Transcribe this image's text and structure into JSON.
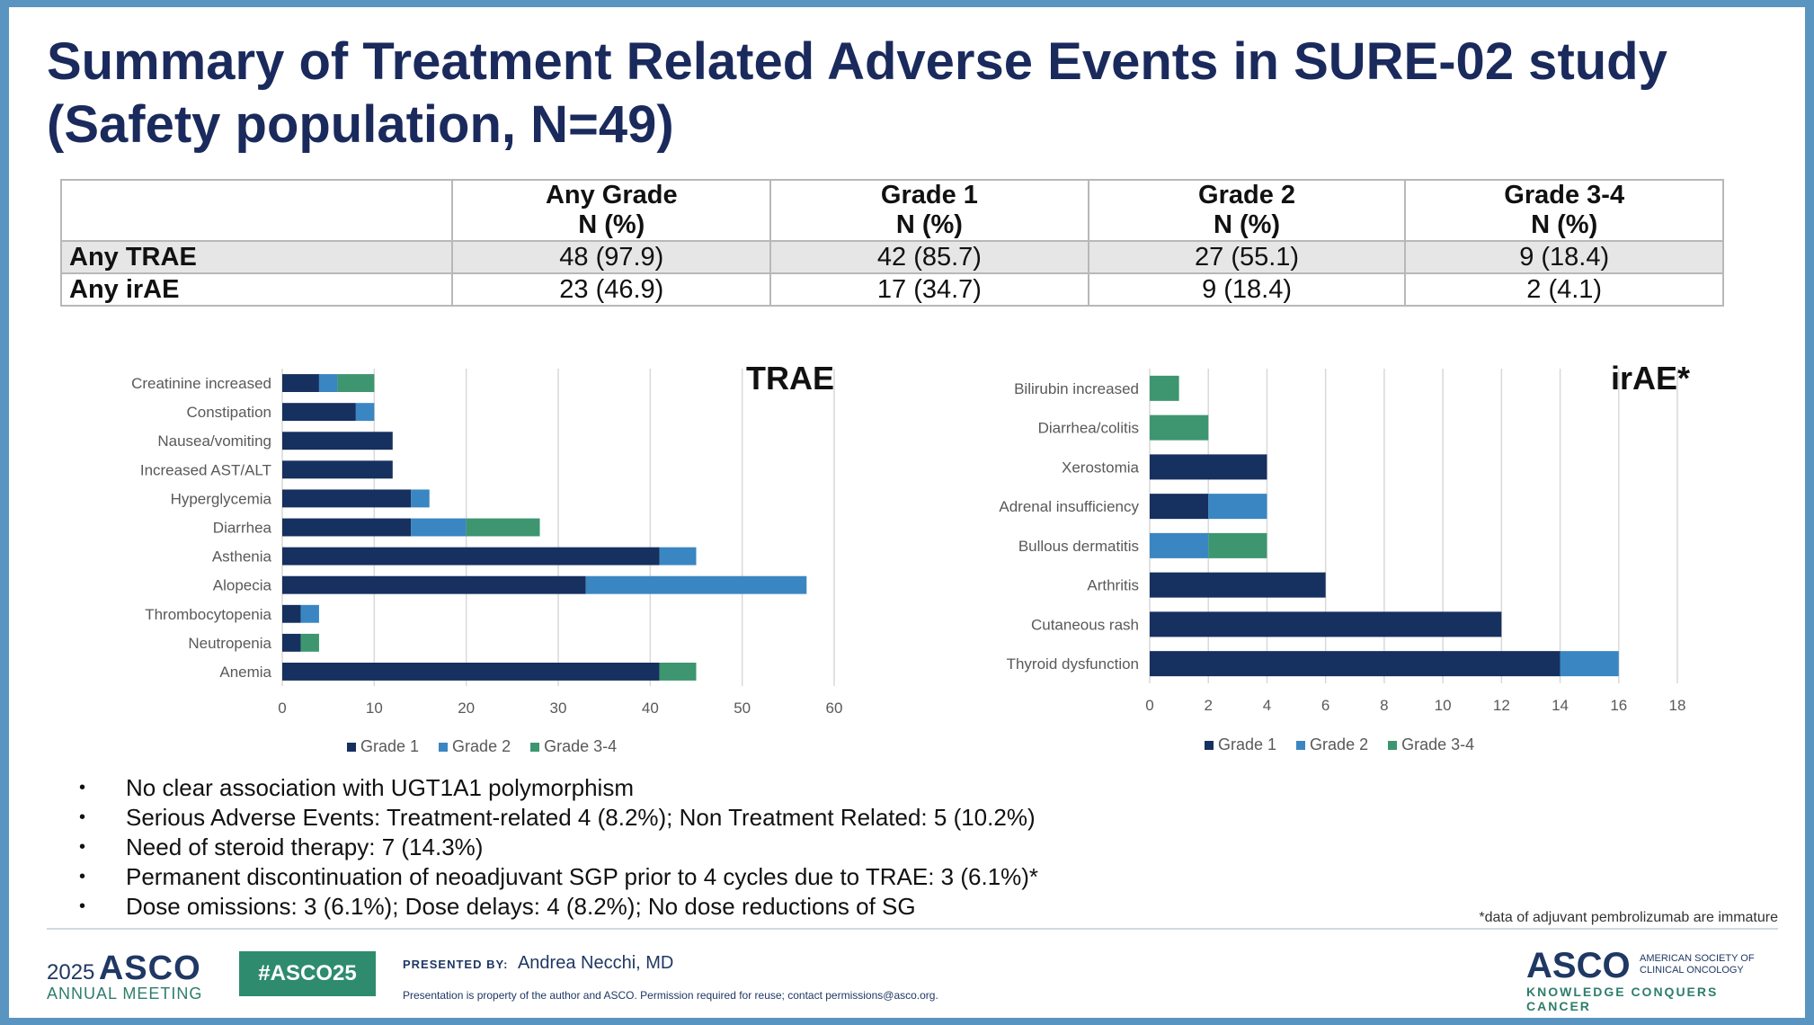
{
  "title": "Summary of Treatment Related Adverse Events in SURE-02 study (Safety population, N=49)",
  "table": {
    "header_line1": [
      "",
      "Any Grade",
      "Grade 1",
      "Grade 2",
      "Grade 3-4"
    ],
    "header_line2": [
      "",
      "N (%)",
      "N (%)",
      "N (%)",
      "N (%)"
    ],
    "rows": [
      {
        "label": "Any TRAE",
        "cells": [
          "48 (97.9)",
          "42 (85.7)",
          "27 (55.1)",
          "9 (18.4)"
        ]
      },
      {
        "label": "Any irAE",
        "cells": [
          "23 (46.9)",
          "17 (34.7)",
          "9 (18.4)",
          "2 (4.1)"
        ]
      }
    ]
  },
  "colors": {
    "grade1": "#16305f",
    "grade2": "#3a86c2",
    "grade34": "#3d9670"
  },
  "chart_data": [
    {
      "type": "bar",
      "orientation": "horizontal",
      "stacked": true,
      "title": "TRAE",
      "categories": [
        "Creatinine increased",
        "Constipation",
        "Nausea/vomiting",
        "Increased AST/ALT",
        "Hyperglycemia",
        "Diarrhea",
        "Asthenia",
        "Alopecia",
        "Thrombocytopenia",
        "Neutropenia",
        "Anemia"
      ],
      "series": [
        {
          "name": "Grade 1",
          "values": [
            4,
            8,
            12,
            12,
            14,
            14,
            41,
            33,
            2,
            2,
            41
          ]
        },
        {
          "name": "Grade 2",
          "values": [
            2,
            2,
            0,
            0,
            2,
            6,
            4,
            24,
            2,
            0,
            0
          ]
        },
        {
          "name": "Grade 3-4",
          "values": [
            4,
            0,
            0,
            0,
            0,
            8,
            0,
            0,
            0,
            2,
            4
          ]
        }
      ],
      "xlim": [
        0,
        60
      ],
      "xticks": [
        0,
        10,
        20,
        30,
        40,
        50,
        60
      ],
      "grid": true,
      "legend": "bottom"
    },
    {
      "type": "bar",
      "orientation": "horizontal",
      "stacked": true,
      "title": "irAE*",
      "categories": [
        "Bilirubin increased",
        "Diarrhea/colitis",
        "Xerostomia",
        "Adrenal insufficiency",
        "Bullous dermatitis",
        "Arthritis",
        "Cutaneous rash",
        "Thyroid dysfunction"
      ],
      "series": [
        {
          "name": "Grade 1",
          "values": [
            0,
            0,
            4,
            2,
            0,
            6,
            12,
            14
          ]
        },
        {
          "name": "Grade 2",
          "values": [
            0,
            0,
            0,
            2,
            2,
            0,
            0,
            2
          ]
        },
        {
          "name": "Grade 3-4",
          "values": [
            1,
            2,
            0,
            0,
            2,
            0,
            0,
            0
          ]
        }
      ],
      "xlim": [
        0,
        18
      ],
      "xticks": [
        0,
        2,
        4,
        6,
        8,
        10,
        12,
        14,
        16,
        18
      ],
      "grid": true,
      "legend": "bottom"
    }
  ],
  "bullets": [
    "No clear association with UGT1A1 polymorphism",
    "Serious Adverse Events: Treatment-related 4 (8.2%); Non Treatment Related: 5 (10.2%)",
    "Need of steroid therapy: 7 (14.3%)",
    "Permanent discontinuation of neoadjuvant SGP prior to 4 cycles due to TRAE: 3 (6.1%)*",
    "Dose omissions: 3 (6.1%); Dose delays: 4 (8.2%); No dose reductions of SG"
  ],
  "footnote": "*data of adjuvant pembrolizumab are immature",
  "footer": {
    "year": "2025",
    "asco": "ASCO",
    "annual_meeting": "ANNUAL MEETING",
    "hashtag": "#ASCO25",
    "presented_by_label": "PRESENTED BY:",
    "presenter": "Andrea Necchi, MD",
    "property_notice": "Presentation is property of the author and ASCO. Permission required for reuse; contact permissions@asco.org.",
    "society_line1": "AMERICAN SOCIETY OF",
    "society_line2": "CLINICAL ONCOLOGY",
    "tagline": "KNOWLEDGE CONQUERS CANCER"
  }
}
